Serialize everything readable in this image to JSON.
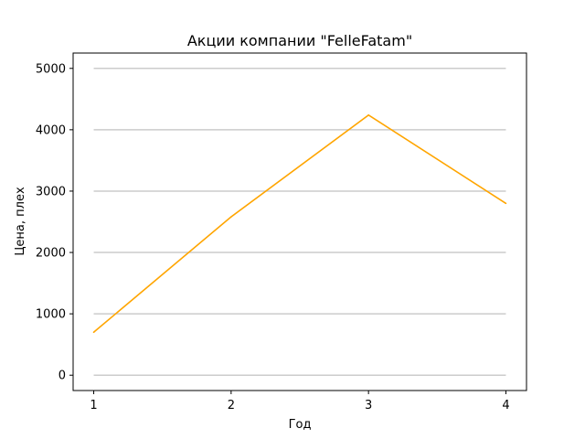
{
  "chart_data": {
    "type": "line",
    "title": "Акции компании \"FelleFatam\"",
    "xlabel": "Год",
    "ylabel": "Цена, плех",
    "x": [
      1,
      2,
      3,
      4
    ],
    "series": [
      {
        "values": [
          700,
          2580,
          4240,
          2800
        ],
        "color": "#ffa500"
      }
    ],
    "xlim": [
      0.85,
      4.15
    ],
    "ylim": [
      -250,
      5250
    ],
    "xticks": [
      1,
      2,
      3,
      4
    ],
    "yticks": [
      0,
      1000,
      2000,
      3000,
      4000,
      5000
    ],
    "grid": "horizontal",
    "grid_color": "#cccccc"
  }
}
